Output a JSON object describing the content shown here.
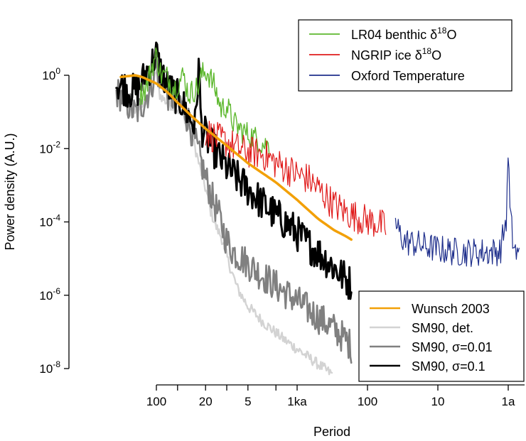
{
  "chart_data": {
    "type": "line",
    "title": "",
    "xlabel": "Period",
    "ylabel": "Power density (A.U.)",
    "x_scale": "log",
    "x_direction": "decreasing period (right = shorter)",
    "y_scale": "log",
    "x_unit": "years (period)",
    "xlim_years": [
      370000,
      0.7
    ],
    "ylim": [
      1e-08,
      3
    ],
    "x_ticks": [
      {
        "label": "100",
        "years": 100000
      },
      {
        "label": "",
        "years": 50000
      },
      {
        "label": "20",
        "years": 20000
      },
      {
        "label": "",
        "years": 10000
      },
      {
        "label": "5",
        "years": 5000
      },
      {
        "label": "",
        "years": 2000
      },
      {
        "label": "1ka",
        "years": 1000
      },
      {
        "label": "100",
        "years": 100
      },
      {
        "label": "10",
        "years": 10
      },
      {
        "label": "1a",
        "years": 1
      }
    ],
    "y_ticks": [
      {
        "base": "10",
        "exp": "-8",
        "value": 1e-08
      },
      {
        "base": "10",
        "exp": "-6",
        "value": 1e-06
      },
      {
        "base": "10",
        "exp": "-4",
        "value": 0.0001
      },
      {
        "base": "10",
        "exp": "-2",
        "value": 0.01
      },
      {
        "base": "1",
        "exp": "",
        "value": 1,
        "label": "10",
        "sup": "0"
      }
    ],
    "legends": [
      {
        "position": "top-right",
        "entries": [
          {
            "key": "lr04",
            "text": "LR04 benthic δ",
            "sup": "18",
            "tail": "O",
            "color": "#5db82e"
          },
          {
            "key": "ngrip",
            "text": "NGRIP ice δ",
            "sup": "18",
            "tail": "O",
            "color": "#e01b1b"
          },
          {
            "key": "oxford",
            "text": "Oxford Temperature",
            "sup": "",
            "tail": "",
            "color": "#1f2f8c"
          }
        ]
      },
      {
        "position": "bottom-right",
        "entries": [
          {
            "key": "wunsch",
            "text": "Wunsch 2003",
            "sup": "",
            "tail": "",
            "color": "#f2a007"
          },
          {
            "key": "det",
            "text": "SM90, det.",
            "sup": "",
            "tail": "",
            "color": "#d3d3d3"
          },
          {
            "key": "s001",
            "text": "SM90, σ=0.01",
            "sup": "",
            "tail": "",
            "color": "#808080"
          },
          {
            "key": "s01",
            "text": "SM90, σ=0.1",
            "sup": "",
            "tail": "",
            "color": "#000000"
          }
        ]
      }
    ],
    "series": [
      {
        "key": "wunsch",
        "color": "#f2a007",
        "width": 3.5,
        "noise": 0,
        "points": [
          [
            320000,
            0.9
          ],
          [
            200000,
            1.0
          ],
          [
            160000,
            0.9
          ],
          [
            120000,
            0.7
          ],
          [
            100000,
            0.6
          ],
          [
            70000,
            0.35
          ],
          [
            50000,
            0.18
          ],
          [
            30000,
            0.07
          ],
          [
            20000,
            0.035
          ],
          [
            10000,
            0.012
          ],
          [
            5000,
            0.004
          ],
          [
            2000,
            0.0012
          ],
          [
            1000,
            0.0004
          ],
          [
            500,
            0.00012
          ],
          [
            300,
            6e-05
          ],
          [
            200,
            4e-05
          ],
          [
            170,
            3.3e-05
          ]
        ]
      },
      {
        "key": "lr04",
        "color": "#5db82e",
        "width": 1.4,
        "noise": 0.35,
        "points": [
          [
            170000,
            0.32
          ],
          [
            140000,
            0.45
          ],
          [
            115000,
            1.8
          ],
          [
            100000,
            3.5
          ],
          [
            85000,
            1.0
          ],
          [
            70000,
            0.9
          ],
          [
            55000,
            0.45
          ],
          [
            41000,
            1.0
          ],
          [
            35000,
            0.3
          ],
          [
            25000,
            0.5
          ],
          [
            23000,
            1.0
          ],
          [
            19000,
            1.3
          ],
          [
            15000,
            0.5
          ],
          [
            12000,
            0.12
          ],
          [
            10000,
            0.15
          ],
          [
            8000,
            0.05
          ],
          [
            6000,
            0.03
          ],
          [
            4000,
            0.02
          ],
          [
            3000,
            0.013
          ],
          [
            2500,
            0.012
          ]
        ]
      },
      {
        "key": "ngrip",
        "color": "#e01b1b",
        "width": 1.2,
        "noise": 0.45,
        "points": [
          [
            20000,
            0.03
          ],
          [
            15000,
            0.02
          ],
          [
            10000,
            0.015
          ],
          [
            7000,
            0.01
          ],
          [
            5000,
            0.008
          ],
          [
            3000,
            0.007
          ],
          [
            2000,
            0.004
          ],
          [
            1000,
            0.002
          ],
          [
            700,
            0.0015
          ],
          [
            500,
            0.0008
          ],
          [
            300,
            0.0003
          ],
          [
            200,
            0.00018
          ],
          [
            120,
            0.00012
          ],
          [
            70,
            9e-05
          ],
          [
            55,
            7e-05
          ]
        ]
      },
      {
        "key": "oxford",
        "color": "#1f2f8c",
        "width": 1.2,
        "noise": 0.4,
        "points": [
          [
            40,
            8e-05
          ],
          [
            30,
            3e-05
          ],
          [
            20,
            2.5e-05
          ],
          [
            10,
            1.8e-05
          ],
          [
            5,
            1.5e-05
          ],
          [
            3,
            1.5e-05
          ],
          [
            2,
            1.5e-05
          ],
          [
            1.3,
            1.6e-05
          ],
          [
            1.05,
            0.00015
          ],
          [
            1.0,
            0.015
          ],
          [
            0.95,
            0.0002
          ],
          [
            0.85,
            2.5e-05
          ],
          [
            0.75,
            1.2e-05
          ],
          [
            0.7,
            1.2e-05
          ]
        ]
      },
      {
        "key": "det",
        "color": "#d3d3d3",
        "width": 2.4,
        "noise": 0.15,
        "points": [
          [
            370000,
            0.3
          ],
          [
            300000,
            0.22
          ],
          [
            250000,
            0.16
          ],
          [
            200000,
            0.12
          ],
          [
            160000,
            0.14
          ],
          [
            130000,
            0.28
          ],
          [
            110000,
            0.5
          ],
          [
            100000,
            1.5
          ],
          [
            90000,
            0.3
          ],
          [
            75000,
            0.2
          ],
          [
            60000,
            0.15
          ],
          [
            45000,
            0.1
          ],
          [
            35000,
            0.05
          ],
          [
            28000,
            0.01
          ],
          [
            24000,
            0.003
          ],
          [
            20000,
            0.0008
          ],
          [
            17000,
            0.0002
          ],
          [
            14000,
            7e-05
          ],
          [
            12000,
            4e-05
          ],
          [
            9000,
            6e-06
          ],
          [
            7000,
            1.5e-06
          ],
          [
            5000,
            5e-07
          ],
          [
            3000,
            1.8e-07
          ],
          [
            1500,
            6e-08
          ],
          [
            800,
            2.5e-08
          ],
          [
            500,
            1.3e-08
          ],
          [
            320,
            7e-09
          ]
        ]
      },
      {
        "key": "s001",
        "color": "#808080",
        "width": 2.6,
        "noise": 0.45,
        "points": [
          [
            370000,
            0.35
          ],
          [
            300000,
            0.25
          ],
          [
            250000,
            0.15
          ],
          [
            200000,
            0.09
          ],
          [
            170000,
            0.12
          ],
          [
            130000,
            0.35
          ],
          [
            110000,
            0.8
          ],
          [
            100000,
            2.5
          ],
          [
            90000,
            0.5
          ],
          [
            80000,
            0.9
          ],
          [
            70000,
            0.3
          ],
          [
            60000,
            0.25
          ],
          [
            45000,
            0.18
          ],
          [
            35000,
            0.06
          ],
          [
            28000,
            0.015
          ],
          [
            22000,
            0.003
          ],
          [
            17000,
            0.0006
          ],
          [
            13000,
            0.00015
          ],
          [
            10000,
            3e-05
          ],
          [
            8000,
            1.5e-05
          ],
          [
            6000,
            1e-05
          ],
          [
            4000,
            5e-06
          ],
          [
            2500,
            2.5e-06
          ],
          [
            1500,
            1.2e-06
          ],
          [
            900,
            6e-07
          ],
          [
            500,
            2.5e-07
          ],
          [
            300,
            1.2e-07
          ],
          [
            200,
            6e-08
          ],
          [
            170,
            4e-08
          ]
        ]
      },
      {
        "key": "s01",
        "color": "#000000",
        "width": 3.0,
        "noise": 0.5,
        "points": [
          [
            370000,
            0.6
          ],
          [
            300000,
            0.5
          ],
          [
            250000,
            0.4
          ],
          [
            200000,
            0.35
          ],
          [
            170000,
            0.5
          ],
          [
            140000,
            1.2
          ],
          [
            120000,
            1.8
          ],
          [
            110000,
            2.6
          ],
          [
            100000,
            4
          ],
          [
            90000,
            1.5
          ],
          [
            80000,
            1.0
          ],
          [
            70000,
            0.5
          ],
          [
            55000,
            0.3
          ],
          [
            45000,
            0.2
          ],
          [
            35000,
            0.08
          ],
          [
            28000,
            0.04
          ],
          [
            25000,
            2
          ],
          [
            23000,
            0.04
          ],
          [
            18000,
            0.015
          ],
          [
            13000,
            0.006
          ],
          [
            10000,
            0.003
          ],
          [
            7000,
            0.0015
          ],
          [
            5000,
            0.0008
          ],
          [
            3000,
            0.0003
          ],
          [
            2000,
            0.00015
          ],
          [
            1200,
            7e-05
          ],
          [
            700,
            2.5e-05
          ],
          [
            400,
            1e-05
          ],
          [
            250,
            4e-06
          ],
          [
            170,
            2e-06
          ]
        ]
      }
    ]
  }
}
